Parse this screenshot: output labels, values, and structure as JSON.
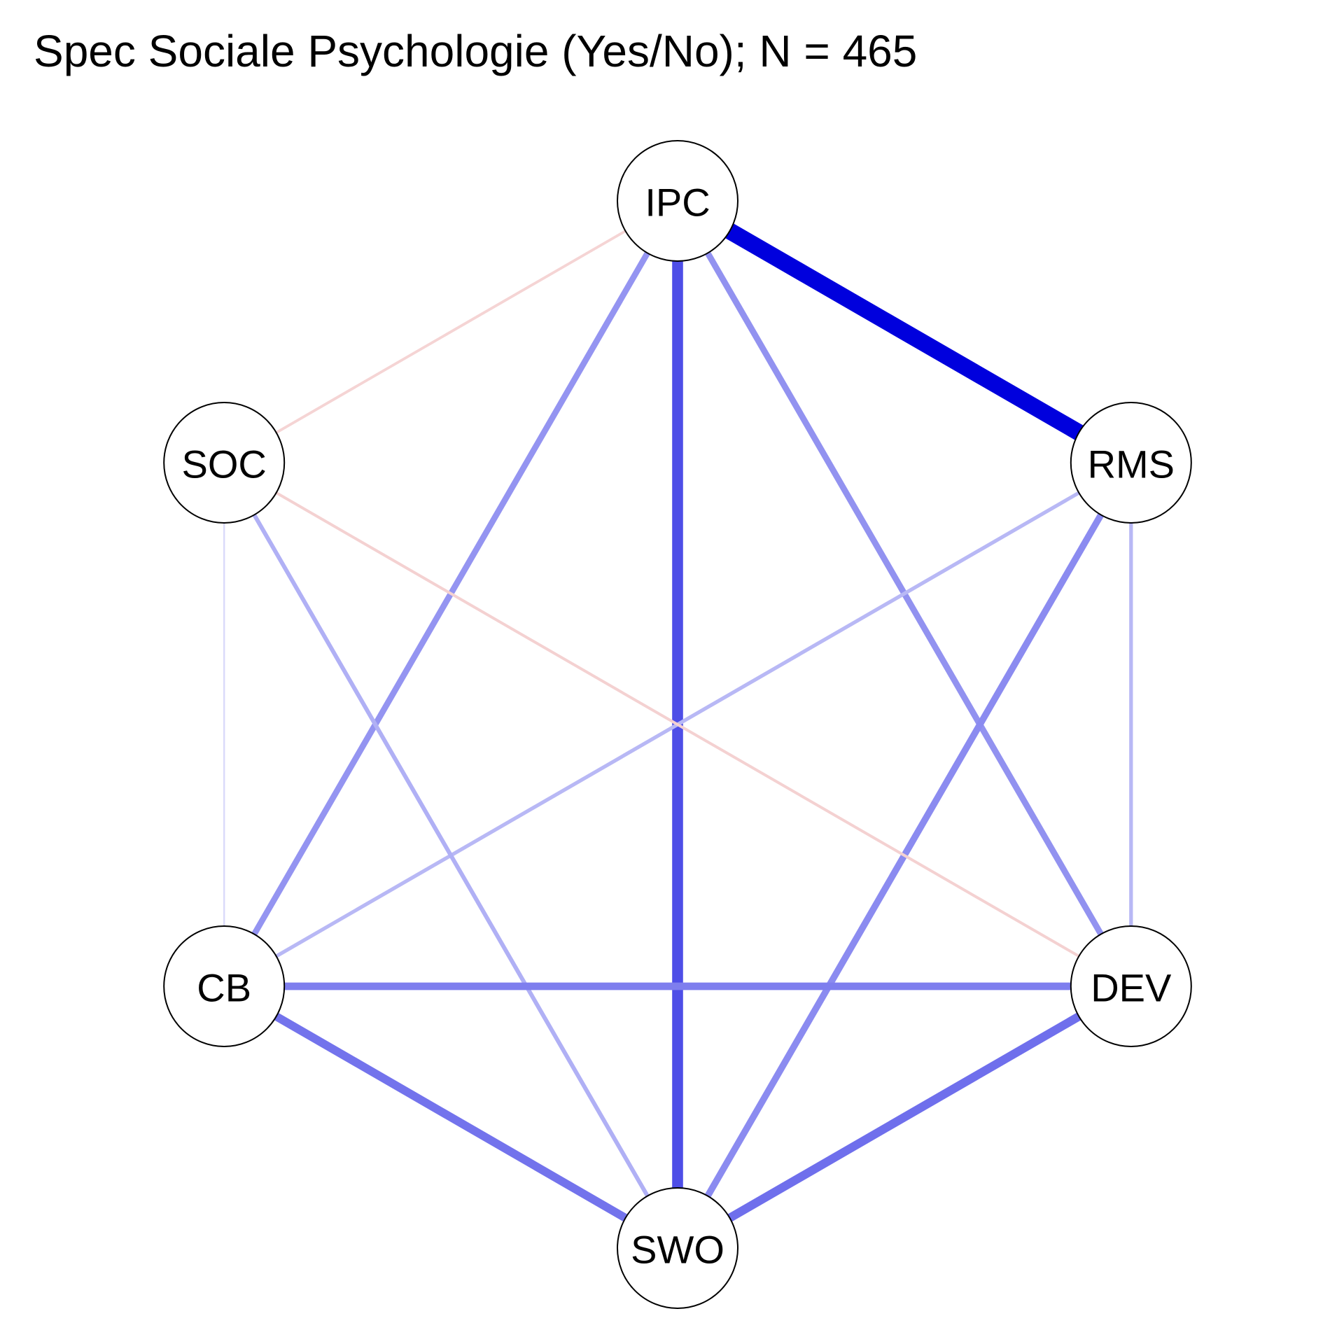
{
  "title": "Spec Sociale Psychologie (Yes/No); N = 465",
  "colors": {
    "positive": "#0000dd",
    "negative": "#cc2222",
    "node_fill": "#ffffff",
    "node_stroke": "#000000"
  },
  "nodes": [
    {
      "id": "IPC",
      "label": "IPC"
    },
    {
      "id": "RMS",
      "label": "RMS"
    },
    {
      "id": "DEV",
      "label": "DEV"
    },
    {
      "id": "SWO",
      "label": "SWO"
    },
    {
      "id": "CB",
      "label": "CB"
    },
    {
      "id": "SOC",
      "label": "SOC"
    }
  ],
  "edges": [
    {
      "from": "IPC",
      "to": "RMS",
      "weight": 1.0
    },
    {
      "from": "IPC",
      "to": "SWO",
      "weight": 0.62
    },
    {
      "from": "IPC",
      "to": "CB",
      "weight": 0.3
    },
    {
      "from": "IPC",
      "to": "DEV",
      "weight": 0.31
    },
    {
      "from": "IPC",
      "to": "SOC",
      "weight": -0.08
    },
    {
      "from": "RMS",
      "to": "SWO",
      "weight": 0.34
    },
    {
      "from": "RMS",
      "to": "CB",
      "weight": 0.15
    },
    {
      "from": "RMS",
      "to": "DEV",
      "weight": 0.15
    },
    {
      "from": "SOC",
      "to": "SWO",
      "weight": 0.18
    },
    {
      "from": "SOC",
      "to": "DEV",
      "weight": -0.09
    },
    {
      "from": "SOC",
      "to": "CB",
      "weight": 0.02
    },
    {
      "from": "CB",
      "to": "DEV",
      "weight": 0.4
    },
    {
      "from": "CB",
      "to": "SWO",
      "weight": 0.45
    },
    {
      "from": "DEV",
      "to": "SWO",
      "weight": 0.47
    }
  ]
}
